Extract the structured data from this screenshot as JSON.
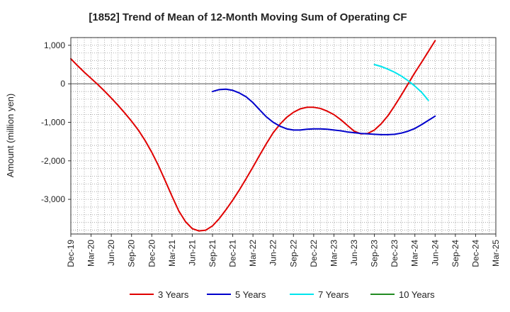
{
  "chart_data": {
    "type": "line",
    "title": "[1852]  Trend of Mean of 12-Month Moving Sum of Operating CF",
    "xlabel": "",
    "ylabel": "Amount (million yen)",
    "ylim": [
      -3900,
      1200
    ],
    "yticks": [
      1000,
      0,
      -1000,
      -2000,
      -3000
    ],
    "ytick_labels": [
      "1,000",
      "0",
      "-1,000",
      "-2,000",
      "-3,000"
    ],
    "x_start": "Dec-19",
    "x_end": "Mar-25",
    "x_tick_labels": [
      "Dec-19",
      "Mar-20",
      "Jun-20",
      "Sep-20",
      "Dec-20",
      "Mar-21",
      "Jun-21",
      "Sep-21",
      "Dec-21",
      "Mar-22",
      "Jun-22",
      "Sep-22",
      "Dec-22",
      "Mar-23",
      "Jun-23",
      "Sep-23",
      "Dec-23",
      "Mar-24",
      "Jun-24",
      "Sep-24",
      "Dec-24",
      "Mar-25"
    ],
    "grid": true,
    "legend_position": "bottom",
    "series": [
      {
        "name": "3 Years",
        "color": "#e00000",
        "points": [
          [
            0,
            650
          ],
          [
            1,
            470
          ],
          [
            2,
            300
          ],
          [
            3,
            140
          ],
          [
            4,
            -20
          ],
          [
            5,
            -190
          ],
          [
            6,
            -370
          ],
          [
            7,
            -560
          ],
          [
            8,
            -760
          ],
          [
            9,
            -970
          ],
          [
            10,
            -1200
          ],
          [
            11,
            -1470
          ],
          [
            12,
            -1780
          ],
          [
            13,
            -2130
          ],
          [
            14,
            -2520
          ],
          [
            15,
            -2920
          ],
          [
            16,
            -3300
          ],
          [
            17,
            -3580
          ],
          [
            18,
            -3760
          ],
          [
            19,
            -3820
          ],
          [
            20,
            -3800
          ],
          [
            21,
            -3690
          ],
          [
            22,
            -3500
          ],
          [
            23,
            -3270
          ],
          [
            24,
            -3020
          ],
          [
            25,
            -2750
          ],
          [
            26,
            -2460
          ],
          [
            27,
            -2160
          ],
          [
            28,
            -1850
          ],
          [
            29,
            -1550
          ],
          [
            30,
            -1270
          ],
          [
            31,
            -1050
          ],
          [
            32,
            -870
          ],
          [
            33,
            -740
          ],
          [
            34,
            -650
          ],
          [
            35,
            -610
          ],
          [
            36,
            -610
          ],
          [
            37,
            -640
          ],
          [
            38,
            -710
          ],
          [
            39,
            -800
          ],
          [
            40,
            -930
          ],
          [
            41,
            -1080
          ],
          [
            42,
            -1230
          ],
          [
            43,
            -1300
          ],
          [
            44,
            -1290
          ],
          [
            45,
            -1200
          ],
          [
            46,
            -1040
          ],
          [
            47,
            -830
          ],
          [
            48,
            -570
          ],
          [
            49,
            -290
          ],
          [
            50,
            0
          ],
          [
            51,
            290
          ],
          [
            52,
            560
          ],
          [
            53,
            840
          ],
          [
            54,
            1120
          ]
        ]
      },
      {
        "name": "5 Years",
        "color": "#0000cc",
        "points": [
          [
            21,
            -200
          ],
          [
            22,
            -150
          ],
          [
            23,
            -140
          ],
          [
            24,
            -170
          ],
          [
            25,
            -240
          ],
          [
            26,
            -340
          ],
          [
            27,
            -490
          ],
          [
            28,
            -680
          ],
          [
            29,
            -860
          ],
          [
            30,
            -1000
          ],
          [
            31,
            -1100
          ],
          [
            32,
            -1170
          ],
          [
            33,
            -1200
          ],
          [
            34,
            -1200
          ],
          [
            35,
            -1180
          ],
          [
            36,
            -1170
          ],
          [
            37,
            -1170
          ],
          [
            38,
            -1180
          ],
          [
            39,
            -1200
          ],
          [
            40,
            -1220
          ],
          [
            41,
            -1250
          ],
          [
            42,
            -1270
          ],
          [
            43,
            -1290
          ],
          [
            44,
            -1300
          ],
          [
            45,
            -1310
          ],
          [
            46,
            -1320
          ],
          [
            47,
            -1320
          ],
          [
            48,
            -1310
          ],
          [
            49,
            -1280
          ],
          [
            50,
            -1230
          ],
          [
            51,
            -1160
          ],
          [
            52,
            -1060
          ],
          [
            53,
            -950
          ],
          [
            54,
            -840
          ]
        ]
      },
      {
        "name": "7 Years",
        "color": "#00e5ee",
        "points": [
          [
            45,
            500
          ],
          [
            46,
            450
          ],
          [
            47,
            380
          ],
          [
            48,
            300
          ],
          [
            49,
            200
          ],
          [
            50,
            80
          ],
          [
            51,
            -60
          ],
          [
            52,
            -220
          ],
          [
            53,
            -430
          ]
        ]
      },
      {
        "name": "10 Years",
        "color": "#228b22",
        "points": []
      }
    ]
  }
}
